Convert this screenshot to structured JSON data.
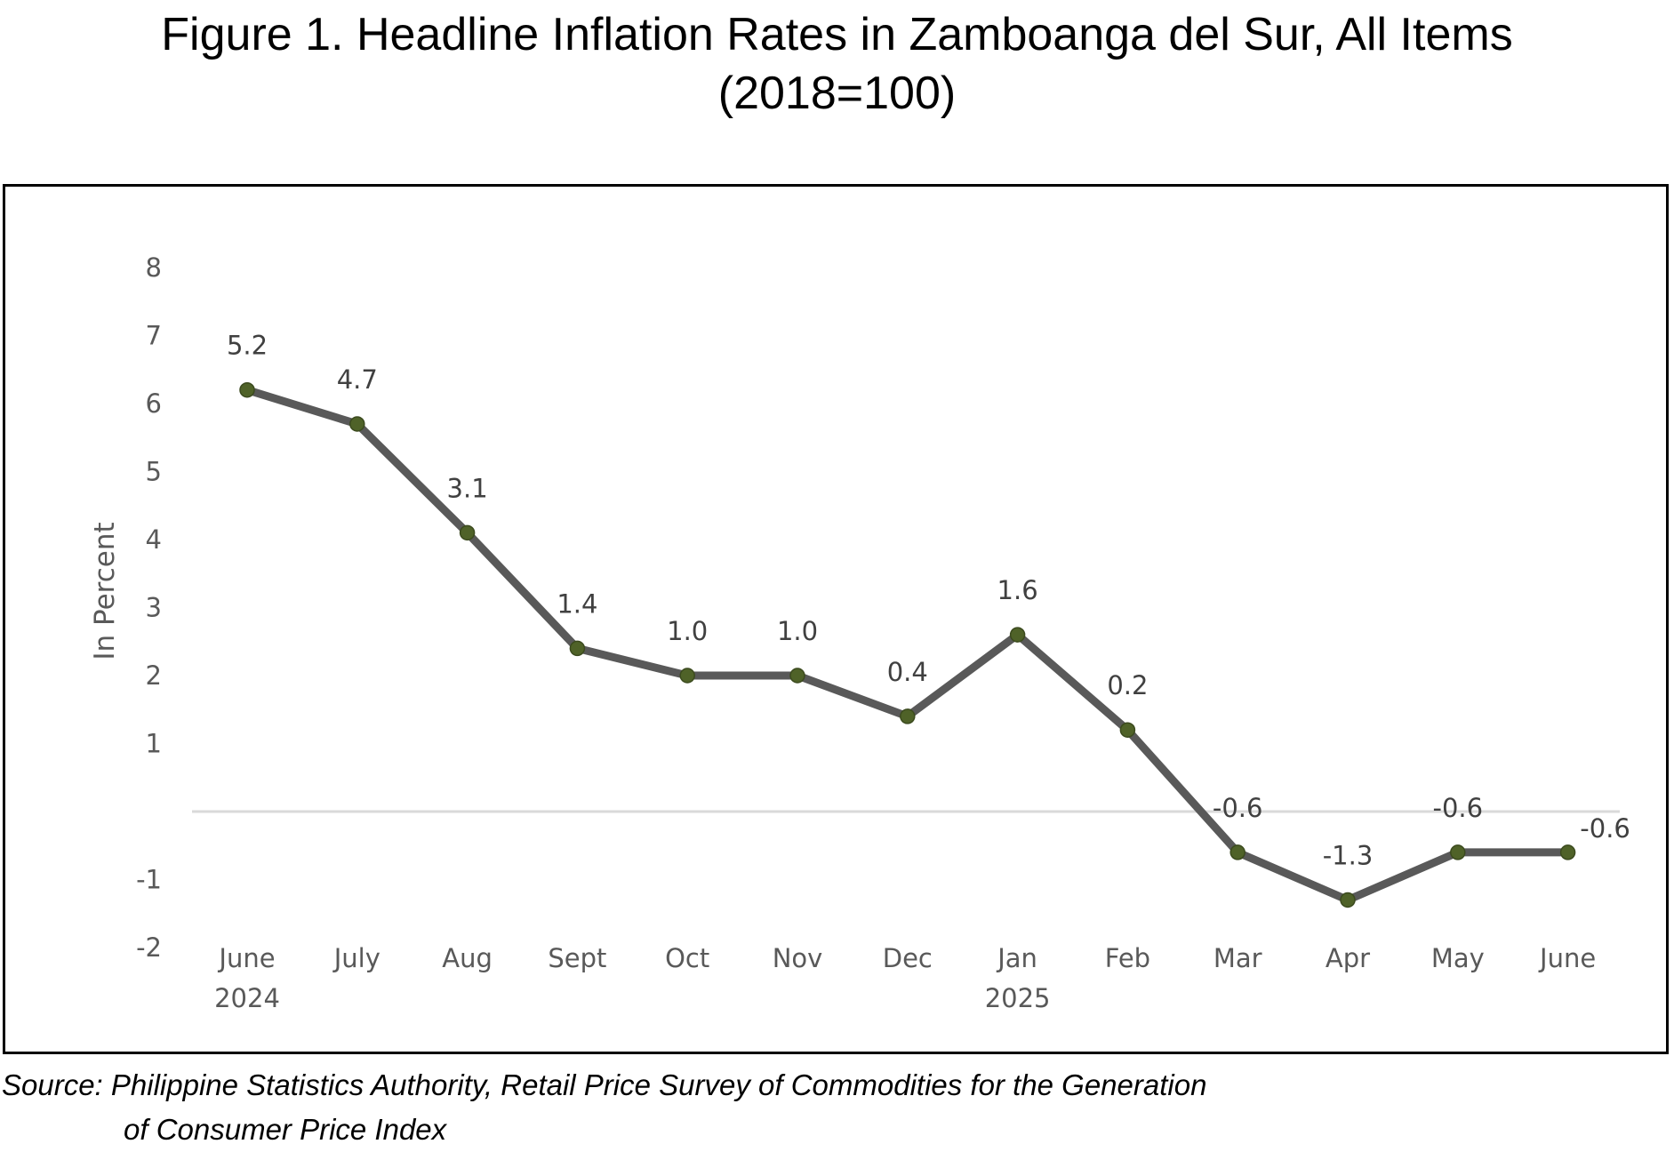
{
  "title": {
    "line1": "Figure 1. Headline Inflation Rates in Zamboanga del Sur, All Items",
    "line2": "(2018=100)"
  },
  "source": {
    "line1": "Source: Philippine Statistics Authority, Retail Price Survey of Commodities for the Generation",
    "line2": "of Consumer Price Index"
  },
  "colors": {
    "line": "#595959",
    "marker": "#4f6228",
    "baseline": "#d9d9d9"
  },
  "chart_data": {
    "type": "line",
    "ylabel": "In Percent",
    "yticks": [
      "8",
      "7",
      "6",
      "5",
      "4",
      "3",
      "2",
      "1",
      "-1",
      "-2"
    ],
    "categories": [
      [
        "June",
        "2024"
      ],
      [
        "July"
      ],
      [
        "Aug"
      ],
      [
        "Sept"
      ],
      [
        "Oct"
      ],
      [
        "Nov"
      ],
      [
        "Dec"
      ],
      [
        "Jan",
        "2025"
      ],
      [
        "Feb"
      ],
      [
        "Mar"
      ],
      [
        "Apr"
      ],
      [
        "May"
      ],
      [
        "June"
      ]
    ],
    "series": [
      {
        "values": [
          5.2,
          4.7,
          3.1,
          1.4,
          1.0,
          1.0,
          0.4,
          1.6,
          0.2,
          -0.6,
          -1.3,
          -0.6,
          -0.6
        ],
        "labels": [
          "5.2",
          "4.7",
          "3.1",
          "1.4",
          "1.0",
          "1.0",
          "0.4",
          "1.6",
          "0.2",
          "-0.6",
          "-1.3",
          "-0.6",
          "-0.6"
        ]
      }
    ],
    "grid": false,
    "legend": "none"
  }
}
